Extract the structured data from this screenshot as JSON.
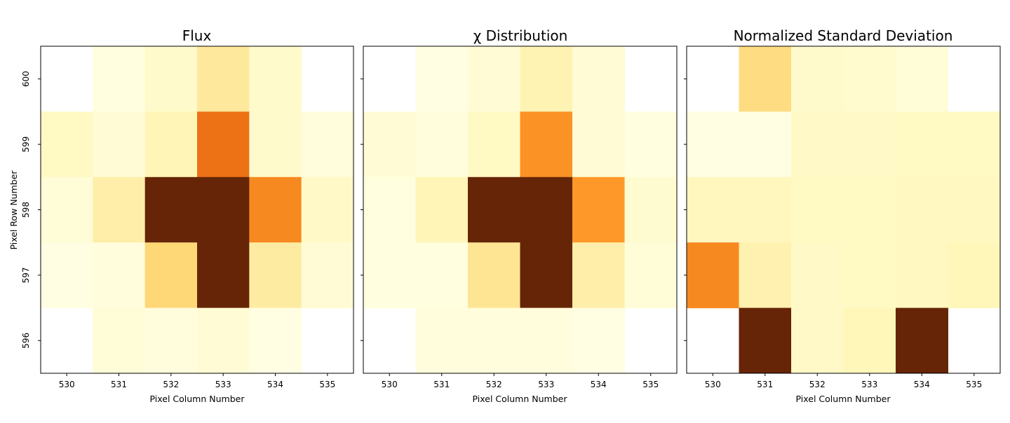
{
  "chart_data": [
    {
      "type": "heatmap",
      "title": "Flux",
      "xlabel": "Pixel Column Number",
      "ylabel": "Pixel Row Number",
      "x": [
        530,
        531,
        532,
        533,
        534,
        535
      ],
      "y": [
        600,
        599,
        598,
        597,
        596
      ],
      "z": [
        [
          null,
          0.02,
          0.08,
          0.22,
          0.08,
          null
        ],
        [
          0.1,
          0.05,
          0.14,
          0.62,
          0.08,
          0.03
        ],
        [
          0.04,
          0.18,
          1.0,
          1.0,
          0.55,
          0.09
        ],
        [
          0.01,
          0.03,
          0.3,
          1.0,
          0.2,
          0.05
        ],
        [
          null,
          0.04,
          0.03,
          0.05,
          0.01,
          null
        ]
      ],
      "colormap": "YlOrBr",
      "grid": false
    },
    {
      "type": "heatmap",
      "title": "χ Distribution",
      "xlabel": "Pixel Column Number",
      "ylabel": "",
      "x": [
        530,
        531,
        532,
        533,
        534,
        535
      ],
      "y": [
        600,
        599,
        598,
        597,
        596
      ],
      "z": [
        [
          null,
          0.01,
          0.05,
          0.15,
          0.05,
          null
        ],
        [
          0.05,
          0.03,
          0.1,
          0.52,
          0.05,
          0.02
        ],
        [
          0.02,
          0.14,
          1.0,
          1.0,
          0.5,
          0.06
        ],
        [
          0.02,
          0.02,
          0.24,
          1.0,
          0.18,
          0.04
        ],
        [
          null,
          0.03,
          0.03,
          0.03,
          0.01,
          null
        ]
      ],
      "colormap": "YlOrBr",
      "grid": false
    },
    {
      "type": "heatmap",
      "title": "Normalized Standard Deviation",
      "xlabel": "Pixel Column Number",
      "ylabel": "",
      "x": [
        530,
        531,
        532,
        533,
        534,
        535
      ],
      "y": [
        600,
        599,
        598,
        597,
        596
      ],
      "z": [
        [
          null,
          0.28,
          0.08,
          0.07,
          0.04,
          null
        ],
        [
          0.01,
          0.01,
          0.09,
          0.09,
          0.1,
          0.1
        ],
        [
          0.12,
          0.12,
          0.1,
          0.1,
          0.11,
          0.11
        ],
        [
          0.55,
          0.16,
          0.09,
          0.1,
          0.11,
          0.13
        ],
        [
          null,
          1.0,
          0.09,
          0.13,
          1.0,
          null
        ]
      ],
      "colormap": "YlOrBr",
      "grid": false
    }
  ]
}
